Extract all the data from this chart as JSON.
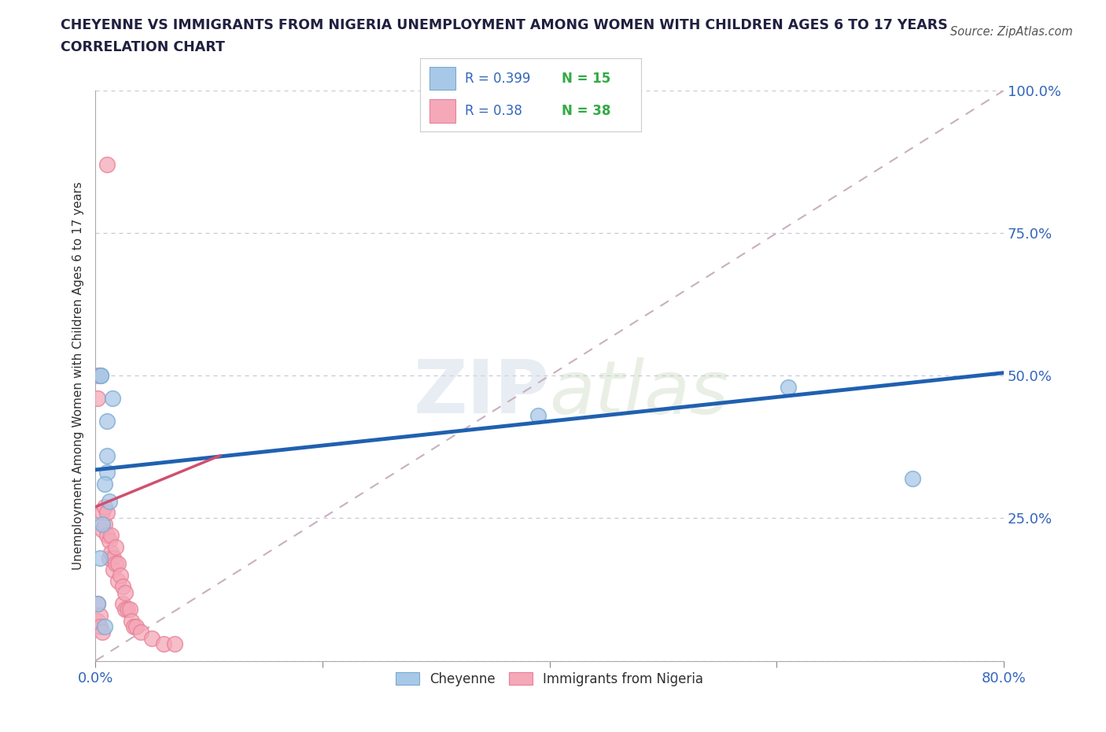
{
  "title_line1": "CHEYENNE VS IMMIGRANTS FROM NIGERIA UNEMPLOYMENT AMONG WOMEN WITH CHILDREN AGES 6 TO 17 YEARS",
  "title_line2": "CORRELATION CHART",
  "source": "Source: ZipAtlas.com",
  "ylabel": "Unemployment Among Women with Children Ages 6 to 17 years",
  "xlim": [
    0.0,
    0.8
  ],
  "ylim": [
    0.0,
    1.0
  ],
  "xticks": [
    0.0,
    0.2,
    0.4,
    0.6,
    0.8
  ],
  "xticklabels": [
    "0.0%",
    "",
    "",
    "",
    "80.0%"
  ],
  "yticks": [
    0.0,
    0.25,
    0.5,
    0.75,
    1.0
  ],
  "yticklabels": [
    "",
    "25.0%",
    "50.0%",
    "75.0%",
    "100.0%"
  ],
  "cheyenne_color": "#a8c8e8",
  "nigeria_color": "#f4a8b8",
  "cheyenne_edge_color": "#7aaad0",
  "nigeria_edge_color": "#e88098",
  "cheyenne_line_color": "#2060b0",
  "nigeria_line_color": "#d05070",
  "cheyenne_R": 0.399,
  "cheyenne_N": 15,
  "nigeria_R": 0.38,
  "nigeria_N": 38,
  "watermark_zip": "ZIP",
  "watermark_atlas": "atlas",
  "background_color": "#ffffff",
  "grid_color": "#c8c8d8",
  "title_color": "#202040",
  "axis_label_color": "#303030",
  "tick_color": "#3366bb",
  "legend_R_color": "#3366bb",
  "legend_N_color": "#33aa44",
  "cheyenne_x": [
    0.005,
    0.015,
    0.01,
    0.01,
    0.005,
    0.01,
    0.008,
    0.012,
    0.006,
    0.004,
    0.002,
    0.008,
    0.61,
    0.72,
    0.39
  ],
  "cheyenne_y": [
    0.5,
    0.46,
    0.42,
    0.36,
    0.5,
    0.33,
    0.31,
    0.28,
    0.24,
    0.18,
    0.1,
    0.06,
    0.48,
    0.32,
    0.43
  ],
  "nigeria_x": [
    0.002,
    0.002,
    0.002,
    0.002,
    0.004,
    0.004,
    0.006,
    0.006,
    0.006,
    0.008,
    0.008,
    0.01,
    0.01,
    0.012,
    0.012,
    0.014,
    0.014,
    0.016,
    0.016,
    0.018,
    0.018,
    0.02,
    0.02,
    0.022,
    0.024,
    0.024,
    0.026,
    0.026,
    0.028,
    0.03,
    0.032,
    0.034,
    0.036,
    0.04,
    0.05,
    0.06,
    0.07,
    0.01
  ],
  "nigeria_y": [
    0.5,
    0.46,
    0.1,
    0.07,
    0.08,
    0.06,
    0.26,
    0.23,
    0.05,
    0.27,
    0.24,
    0.26,
    0.22,
    0.21,
    0.18,
    0.22,
    0.19,
    0.18,
    0.16,
    0.2,
    0.17,
    0.17,
    0.14,
    0.15,
    0.13,
    0.1,
    0.12,
    0.09,
    0.09,
    0.09,
    0.07,
    0.06,
    0.06,
    0.05,
    0.04,
    0.03,
    0.03,
    0.87
  ],
  "diag_line_color": "#c8b0c0",
  "chey_trend_x0": 0.0,
  "chey_trend_x1": 0.8,
  "chey_trend_y0": 0.335,
  "chey_trend_y1": 0.505,
  "nig_trend_x0": 0.0,
  "nig_trend_x1": 0.11,
  "nig_trend_y0": 0.27,
  "nig_trend_y1": 0.36
}
